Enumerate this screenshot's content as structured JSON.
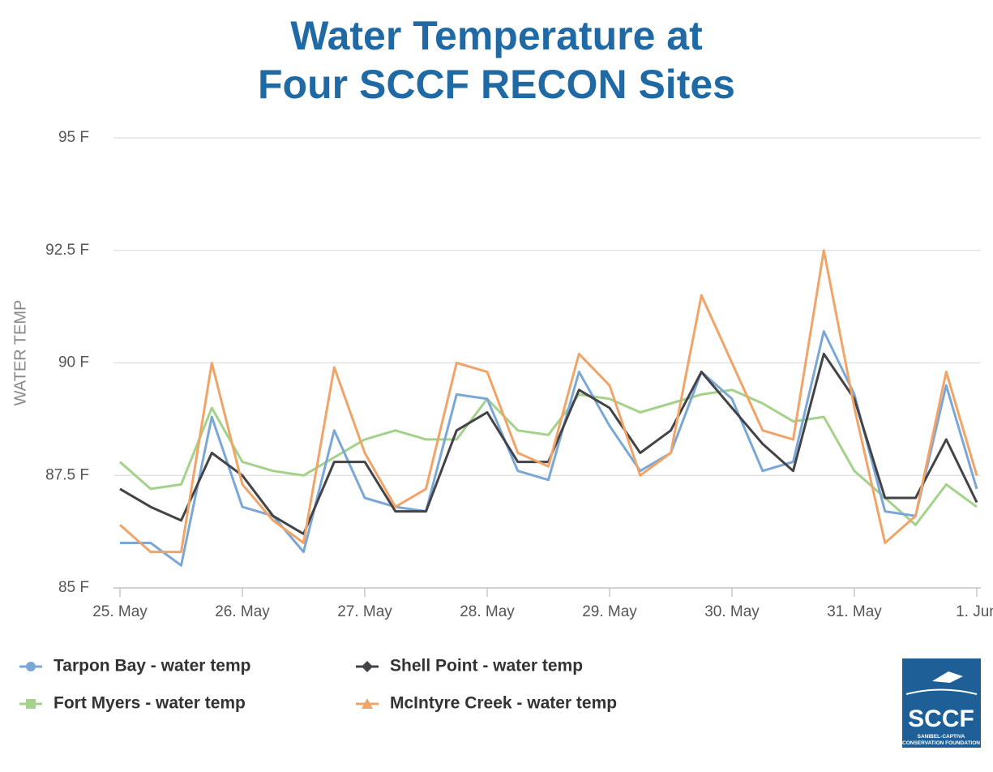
{
  "chart_data": {
    "type": "line",
    "title": "Water Temperature at\nFour SCCF RECON Sites",
    "ylabel": "WATER TEMP",
    "x": [
      0,
      0.25,
      0.5,
      0.75,
      1,
      1.25,
      1.5,
      1.75,
      2,
      2.25,
      2.5,
      2.75,
      3,
      3.25,
      3.5,
      3.75,
      4,
      4.25,
      4.5,
      4.75,
      5,
      5.25,
      5.5,
      5.75,
      6,
      6.25,
      6.5,
      6.75,
      7
    ],
    "xlim": [
      0,
      7
    ],
    "xticks": [
      {
        "value": 0,
        "label": "25. May"
      },
      {
        "value": 1,
        "label": "26. May"
      },
      {
        "value": 2,
        "label": "27. May"
      },
      {
        "value": 3,
        "label": "28. May"
      },
      {
        "value": 4,
        "label": "29. May"
      },
      {
        "value": 5,
        "label": "30. May"
      },
      {
        "value": 6,
        "label": "31. May"
      },
      {
        "value": 7,
        "label": "1. Jun"
      }
    ],
    "ylim": [
      85,
      95
    ],
    "yticks": [
      {
        "value": 85,
        "label": "85 F"
      },
      {
        "value": 87.5,
        "label": "87.5 F"
      },
      {
        "value": 90,
        "label": "90 F"
      },
      {
        "value": 92.5,
        "label": "92.5 F"
      },
      {
        "value": 95,
        "label": "95 F"
      }
    ],
    "grid": true,
    "series": [
      {
        "name": "Tarpon Bay - water temp",
        "color": "#7ba7d6",
        "marker": "circle",
        "values": [
          86.0,
          86.0,
          85.5,
          88.8,
          86.8,
          86.6,
          85.8,
          88.5,
          87.0,
          86.8,
          86.7,
          89.3,
          89.2,
          87.6,
          87.4,
          89.8,
          88.6,
          87.6,
          88.0,
          89.8,
          89.2,
          87.6,
          87.8,
          90.7,
          89.3,
          86.7,
          86.6,
          89.5,
          87.2
        ]
      },
      {
        "name": "Shell Point - water temp",
        "color": "#434348",
        "marker": "diamond",
        "values": [
          87.2,
          86.8,
          86.5,
          88.0,
          87.5,
          86.6,
          86.2,
          87.8,
          87.8,
          86.7,
          86.7,
          88.5,
          88.9,
          87.8,
          87.8,
          89.4,
          89.0,
          88.0,
          88.5,
          89.8,
          89.0,
          88.2,
          87.6,
          90.2,
          89.2,
          87.0,
          87.0,
          88.3,
          86.9
        ]
      },
      {
        "name": "Fort Myers - water temp",
        "color": "#a3d28a",
        "marker": "square",
        "values": [
          87.8,
          87.2,
          87.3,
          89.0,
          87.8,
          87.6,
          87.5,
          87.9,
          88.3,
          88.5,
          88.3,
          88.3,
          89.2,
          88.5,
          88.4,
          89.3,
          89.2,
          88.9,
          89.1,
          89.3,
          89.4,
          89.1,
          88.7,
          88.8,
          87.6,
          87.0,
          86.4,
          87.3,
          86.8
        ]
      },
      {
        "name": "McIntyre Creek - water temp",
        "color": "#f0a468",
        "marker": "triangle",
        "values": [
          86.4,
          85.8,
          85.8,
          90.0,
          87.3,
          86.5,
          86.0,
          89.9,
          88.0,
          86.8,
          87.2,
          90.0,
          89.8,
          88.0,
          87.7,
          90.2,
          89.5,
          87.5,
          88.0,
          91.5,
          90.0,
          88.5,
          88.3,
          92.5,
          89.0,
          86.0,
          86.6,
          89.8,
          87.5
        ]
      }
    ],
    "logo_text": "SCCF",
    "logo_subtitle": "SANIBEL-CAPTIVA\nCONSERVATION FOUNDATION"
  }
}
